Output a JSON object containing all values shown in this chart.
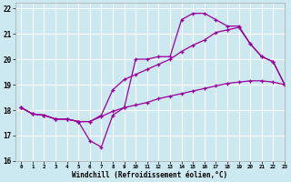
{
  "xlabel": "Windchill (Refroidissement éolien,°C)",
  "bg_color": "#cce8f0",
  "grid_color": "#ffffff",
  "line_color": "#990099",
  "xlim": [
    -0.5,
    23
  ],
  "ylim": [
    16,
    22.2
  ],
  "yticks": [
    16,
    17,
    18,
    19,
    20,
    21,
    22
  ],
  "xticks": [
    0,
    1,
    2,
    3,
    4,
    5,
    6,
    7,
    8,
    9,
    10,
    11,
    12,
    13,
    14,
    15,
    16,
    17,
    18,
    19,
    20,
    21,
    22,
    23
  ],
  "line1_x": [
    0,
    1,
    2,
    3,
    4,
    5,
    6,
    7,
    8,
    9,
    10,
    11,
    12,
    13,
    14,
    15,
    16,
    17,
    18,
    19,
    20,
    21,
    22,
    23
  ],
  "line1_y": [
    18.1,
    17.85,
    17.8,
    17.65,
    17.65,
    17.55,
    16.8,
    16.55,
    17.8,
    18.1,
    20.0,
    20.0,
    20.1,
    20.1,
    21.55,
    21.8,
    21.8,
    21.55,
    21.3,
    21.3,
    20.6,
    20.1,
    19.9,
    19.0
  ],
  "line2_x": [
    0,
    1,
    2,
    3,
    4,
    5,
    6,
    7,
    8,
    9,
    10,
    11,
    12,
    13,
    14,
    15,
    16,
    17,
    18,
    19,
    20,
    21,
    22,
    23
  ],
  "line2_y": [
    18.1,
    17.85,
    17.8,
    17.65,
    17.65,
    17.55,
    17.55,
    17.8,
    18.8,
    19.2,
    19.4,
    19.6,
    19.8,
    20.0,
    20.3,
    20.55,
    20.75,
    21.05,
    21.15,
    21.25,
    20.6,
    20.1,
    19.9,
    19.0
  ],
  "line3_x": [
    0,
    1,
    2,
    3,
    4,
    5,
    6,
    7,
    8,
    9,
    10,
    11,
    12,
    13,
    14,
    15,
    16,
    17,
    18,
    19,
    20,
    21,
    22,
    23
  ],
  "line3_y": [
    18.1,
    17.85,
    17.8,
    17.65,
    17.65,
    17.55,
    17.55,
    17.75,
    17.95,
    18.1,
    18.2,
    18.3,
    18.45,
    18.55,
    18.65,
    18.75,
    18.85,
    18.95,
    19.05,
    19.1,
    19.15,
    19.15,
    19.1,
    19.0
  ]
}
